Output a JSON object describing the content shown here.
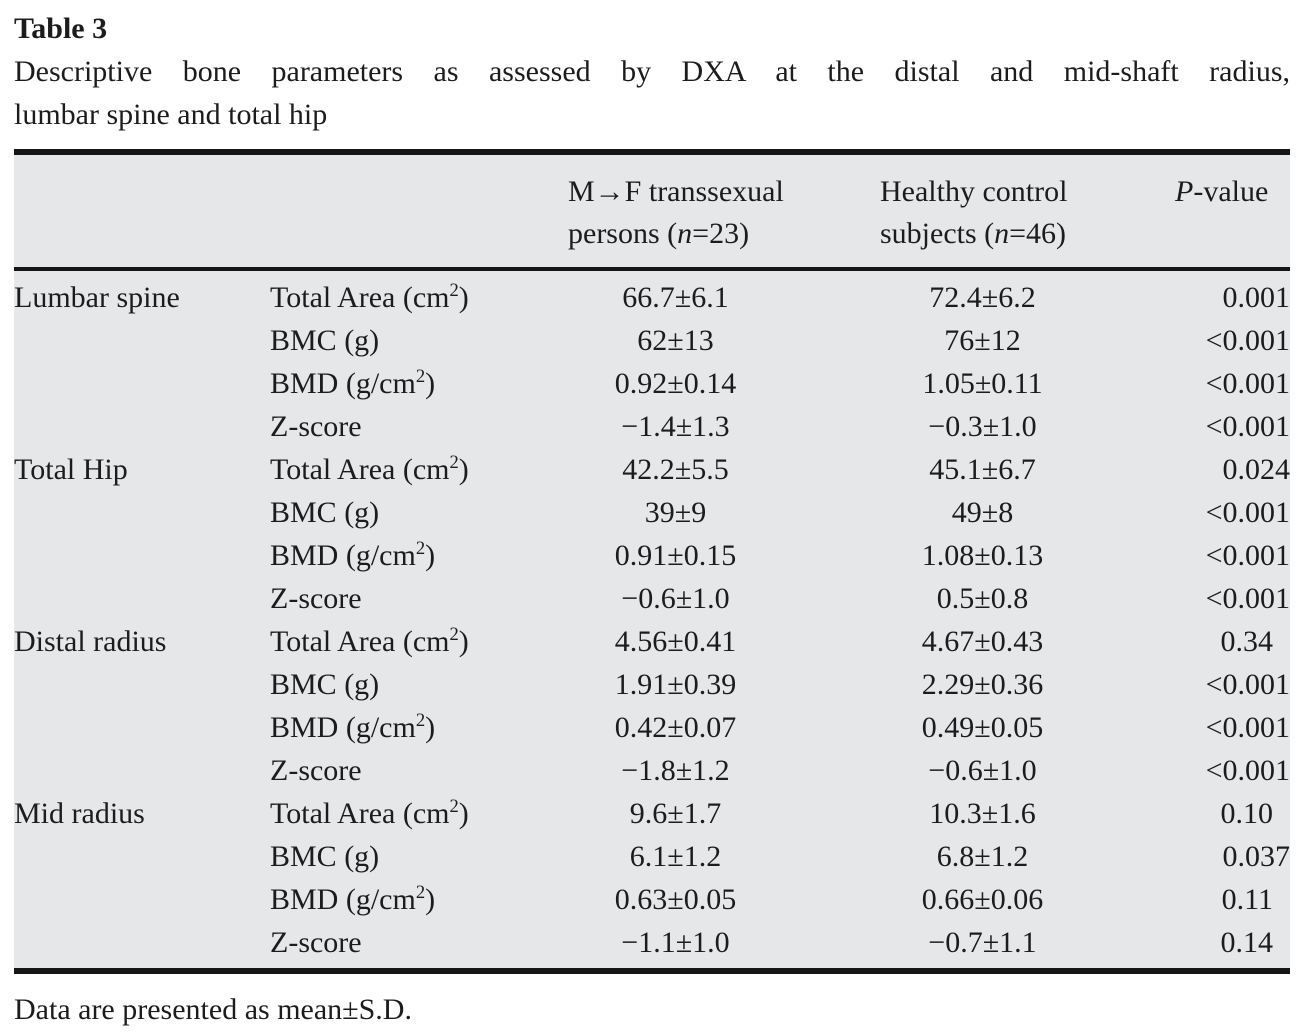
{
  "title": "Table 3",
  "caption": {
    "line1": "Descriptive bone parameters as assessed by DXA at the distal and mid-shaft radius,",
    "line2": "lumbar spine and total hip"
  },
  "header": {
    "group1": {
      "line1": "M→F transsexual",
      "line2_pre": "persons (",
      "line2_italic": "n",
      "line2_post": "=23)"
    },
    "group2": {
      "line1": "Healthy control",
      "line2_pre": "subjects (",
      "line2_italic": "n",
      "line2_post": "=46)"
    },
    "pcol": {
      "italic": "P",
      "post": "-value"
    }
  },
  "groups": [
    {
      "region": "Lumbar spine",
      "rows": [
        {
          "param_pre": "Total Area (cm",
          "param_sup": "2",
          "param_post": ")",
          "g1": "66.7±6.1",
          "g2": "72.4±6.2",
          "p": "0.001"
        },
        {
          "param_pre": "BMC (g)",
          "param_sup": "",
          "param_post": "",
          "g1": "62±13",
          "g2": "76±12",
          "p": "<0.001"
        },
        {
          "param_pre": "BMD (g/cm",
          "param_sup": "2",
          "param_post": ")",
          "g1": "0.92±0.14",
          "g2": "1.05±0.11",
          "p": "<0.001"
        },
        {
          "param_pre": "Z-score",
          "param_sup": "",
          "param_post": "",
          "g1": "−1.4±1.3",
          "g2": "−0.3±1.0",
          "p": "<0.001"
        }
      ]
    },
    {
      "region": "Total Hip",
      "rows": [
        {
          "param_pre": "Total Area (cm",
          "param_sup": "2",
          "param_post": ")",
          "g1": "42.2±5.5",
          "g2": "45.1±6.7",
          "p": "0.024"
        },
        {
          "param_pre": "BMC (g)",
          "param_sup": "",
          "param_post": "",
          "g1": "39±9",
          "g2": "49±8",
          "p": "<0.001"
        },
        {
          "param_pre": "BMD (g/cm",
          "param_sup": "2",
          "param_post": ")",
          "g1": "0.91±0.15",
          "g2": "1.08±0.13",
          "p": "<0.001"
        },
        {
          "param_pre": "Z-score",
          "param_sup": "",
          "param_post": "",
          "g1": "−0.6±1.0",
          "g2": "0.5±0.8",
          "p": "<0.001"
        }
      ]
    },
    {
      "region": "Distal radius",
      "rows": [
        {
          "param_pre": "Total Area (cm",
          "param_sup": "2",
          "param_post": ")",
          "g1": "4.56±0.41",
          "g2": "4.67±0.43",
          "p": "0.34"
        },
        {
          "param_pre": "BMC (g)",
          "param_sup": "",
          "param_post": "",
          "g1": "1.91±0.39",
          "g2": "2.29±0.36",
          "p": "<0.001"
        },
        {
          "param_pre": "BMD (g/cm",
          "param_sup": "2",
          "param_post": ")",
          "g1": "0.42±0.07",
          "g2": "0.49±0.05",
          "p": "<0.001"
        },
        {
          "param_pre": "Z-score",
          "param_sup": "",
          "param_post": "",
          "g1": "−1.8±1.2",
          "g2": "−0.6±1.0",
          "p": "<0.001"
        }
      ]
    },
    {
      "region": "Mid radius",
      "rows": [
        {
          "param_pre": "Total Area (cm",
          "param_sup": "2",
          "param_post": ")",
          "g1": "9.6±1.7",
          "g2": "10.3±1.6",
          "p": "0.10"
        },
        {
          "param_pre": "BMC (g)",
          "param_sup": "",
          "param_post": "",
          "g1": "6.1±1.2",
          "g2": "6.8±1.2",
          "p": "0.037"
        },
        {
          "param_pre": "BMD (g/cm",
          "param_sup": "2",
          "param_post": ")",
          "g1": "0.63±0.05",
          "g2": "0.66±0.06",
          "p": "0.11"
        },
        {
          "param_pre": "Z-score",
          "param_sup": "",
          "param_post": "",
          "g1": "−1.1±1.0",
          "g2": "−0.7±1.1",
          "p": "0.14"
        }
      ]
    }
  ],
  "footnote": "Data are presented as mean±S.D.",
  "colors": {
    "table_bg": "#e6e7e8",
    "rule": "#161616",
    "text": "#1c1c1c"
  }
}
